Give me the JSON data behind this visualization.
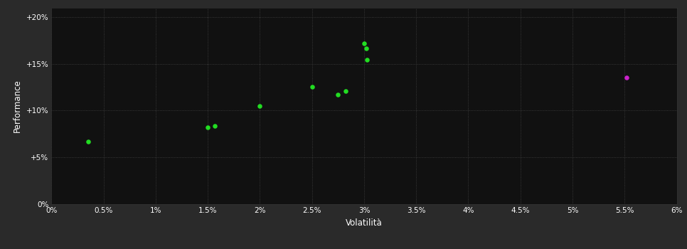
{
  "background_color": "#2a2a2a",
  "plot_bg_color": "#111111",
  "grid_color": "#444444",
  "text_color": "#ffffff",
  "green_dots": [
    [
      0.35,
      6.7
    ],
    [
      1.5,
      8.2
    ],
    [
      1.57,
      8.35
    ],
    [
      2.0,
      10.5
    ],
    [
      2.5,
      12.5
    ],
    [
      2.75,
      11.7
    ],
    [
      2.82,
      12.1
    ],
    [
      3.0,
      17.2
    ],
    [
      3.02,
      16.6
    ],
    [
      3.03,
      15.4
    ]
  ],
  "magenta_dots": [
    [
      5.52,
      13.5
    ]
  ],
  "green_color": "#22dd22",
  "magenta_color": "#cc22cc",
  "dot_size": 22,
  "xlabel": "Volatilità",
  "ylabel": "Performance",
  "xlim": [
    0.0,
    6.0
  ],
  "ylim": [
    0.0,
    21.0
  ],
  "xticks": [
    0.0,
    0.5,
    1.0,
    1.5,
    2.0,
    2.5,
    3.0,
    3.5,
    4.0,
    4.5,
    5.0,
    5.5,
    6.0
  ],
  "yticks": [
    0.0,
    5.0,
    10.0,
    15.0,
    20.0
  ],
  "ytick_labels": [
    "0%",
    "+5%",
    "+10%",
    "+15%",
    "+20%"
  ],
  "xtick_labels": [
    "0%",
    "0.5%",
    "1%",
    "1.5%",
    "2%",
    "2.5%",
    "3%",
    "3.5%",
    "4%",
    "4.5%",
    "5%",
    "5.5%",
    "6%"
  ]
}
